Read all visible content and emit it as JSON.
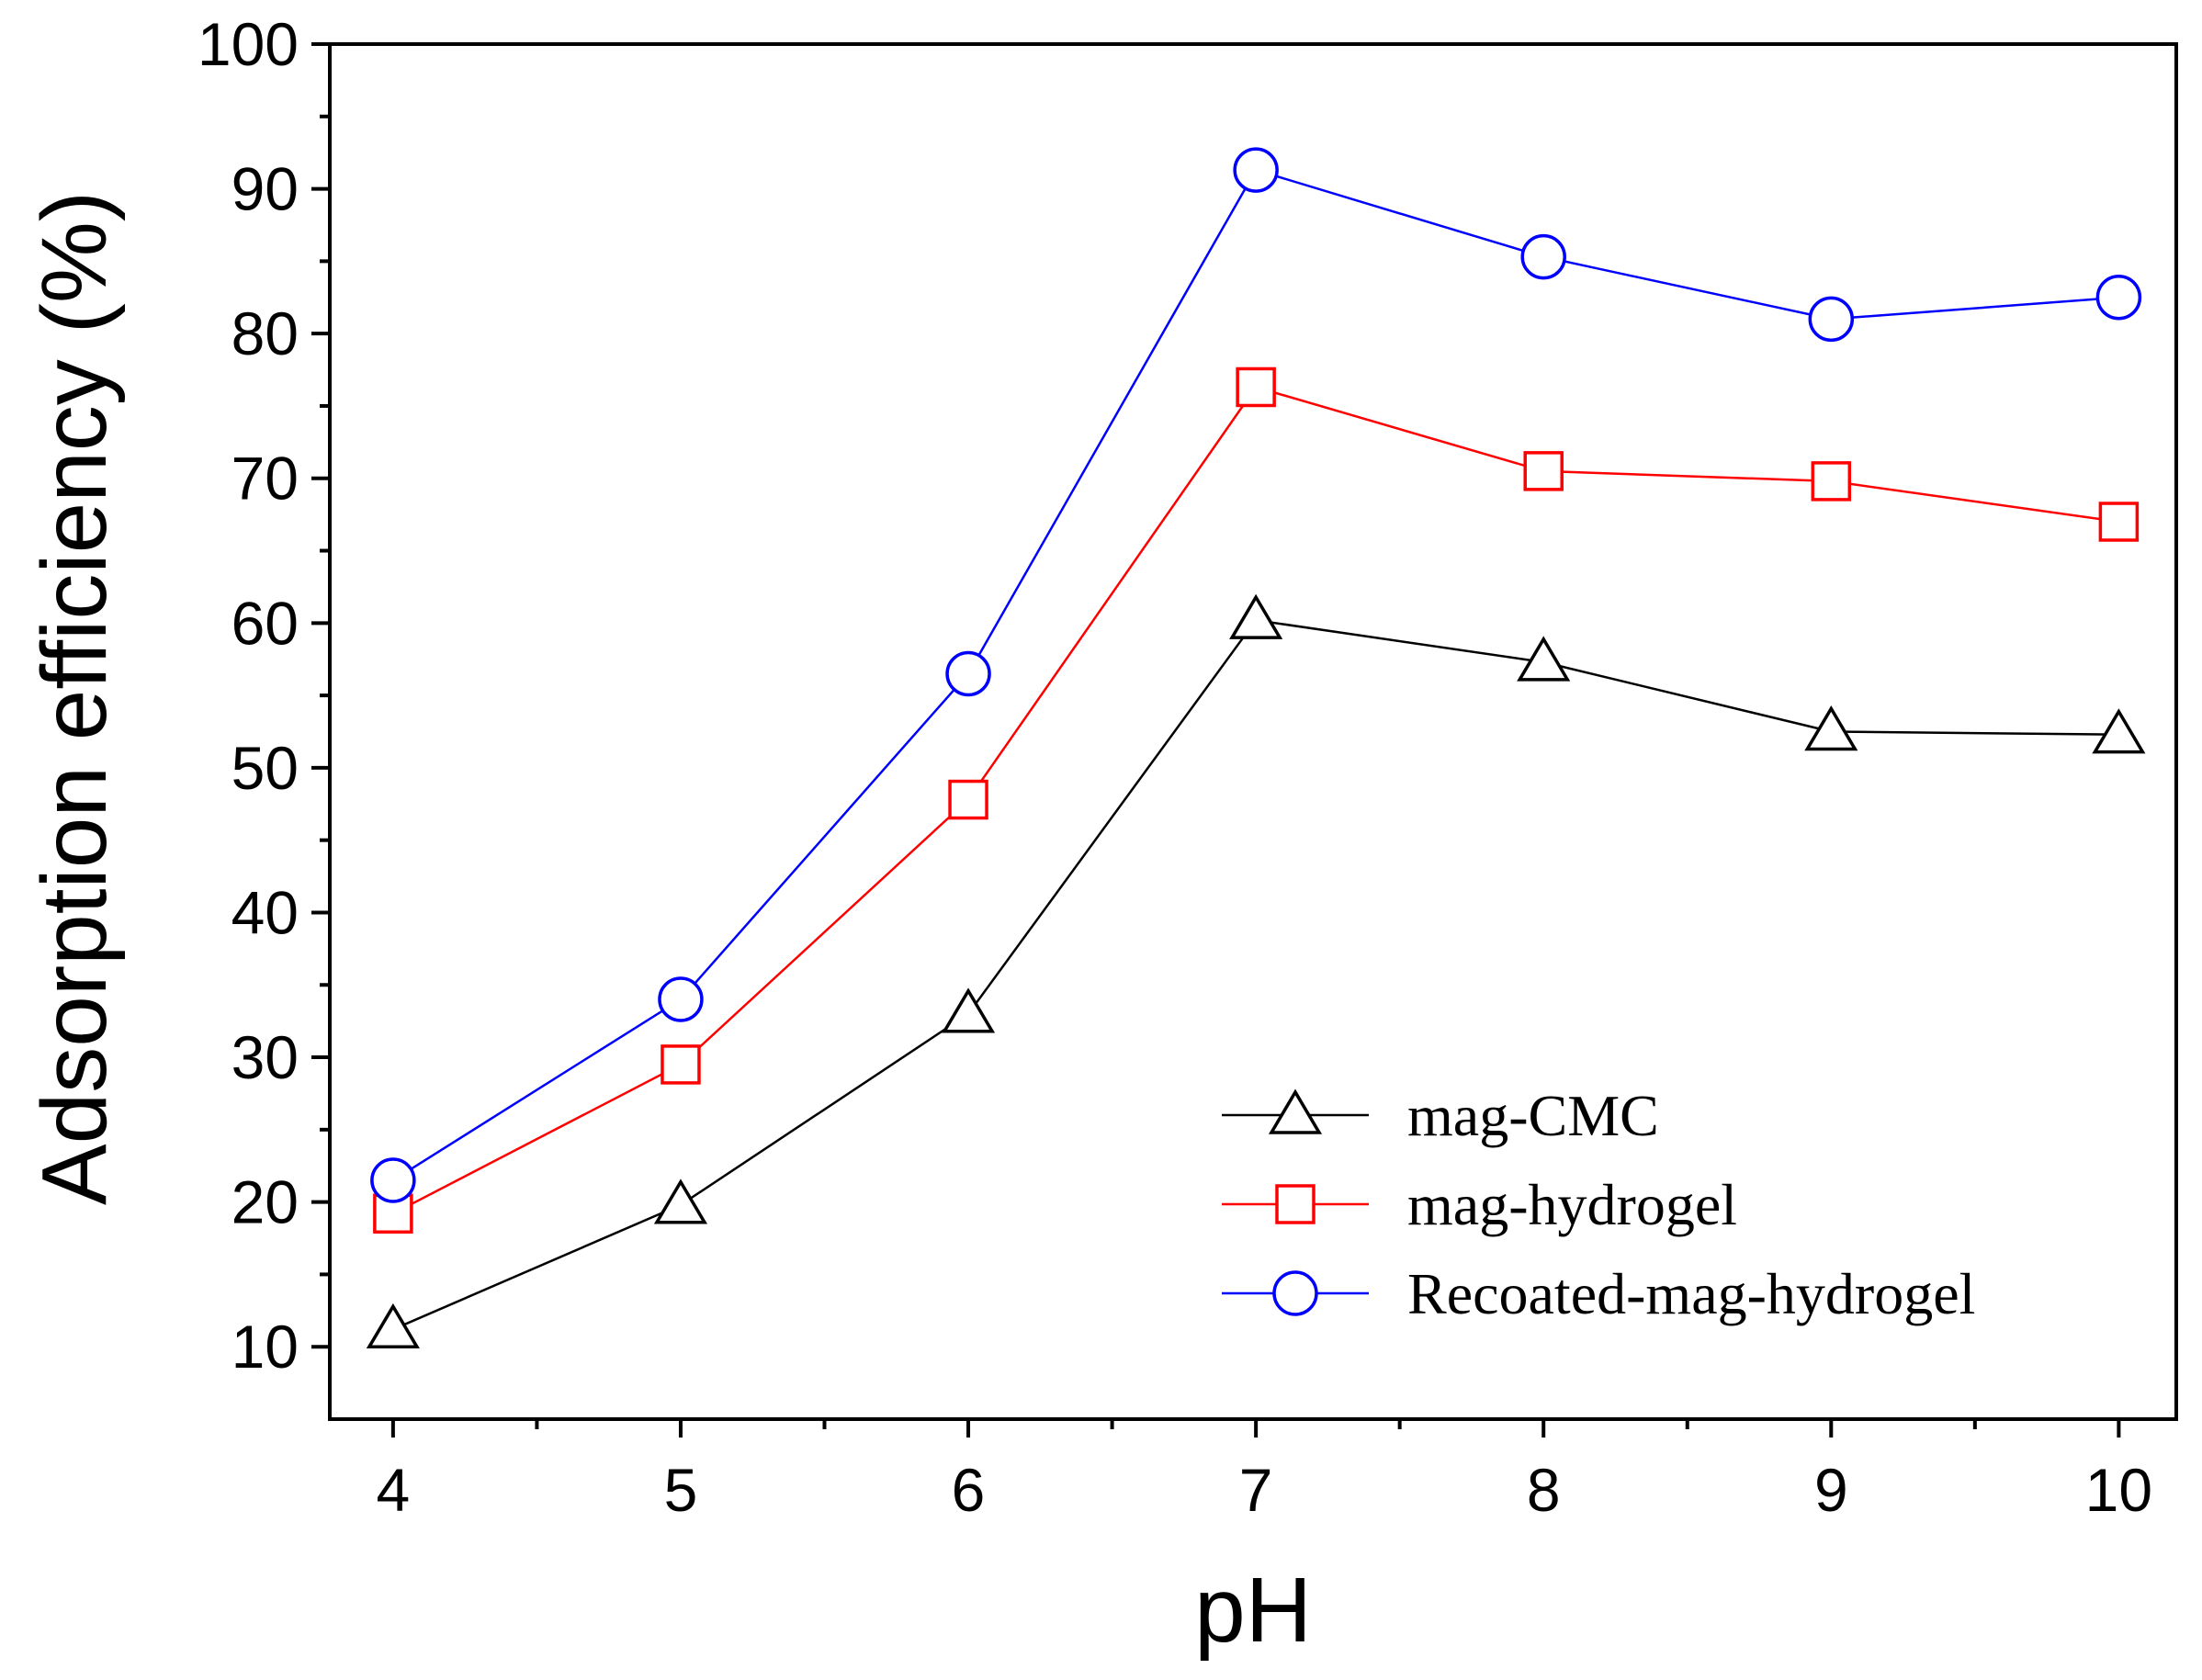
{
  "chart_data": {
    "type": "line",
    "title": "",
    "xlabel": "pH",
    "ylabel": "Adsorption  efficiency (%)",
    "x": [
      4,
      5,
      6,
      7,
      8,
      9,
      10
    ],
    "xlim": [
      3.78,
      10.2
    ],
    "ylim": [
      5,
      100
    ],
    "xticks": [
      4,
      5,
      6,
      7,
      8,
      9,
      10
    ],
    "yticks": [
      10,
      20,
      30,
      40,
      50,
      60,
      70,
      80,
      90,
      100
    ],
    "grid": false,
    "legend_position": "bottom-right",
    "series": [
      {
        "name": "mag-CMC",
        "marker": "triangle",
        "color": "#000000",
        "values": [
          11.2,
          19.8,
          33.0,
          60.2,
          57.3,
          52.5,
          52.3
        ]
      },
      {
        "name": "mag-hydrogel",
        "marker": "square",
        "color": "#ff0000",
        "values": [
          19.2,
          29.5,
          47.8,
          76.3,
          70.5,
          69.8,
          67.0
        ]
      },
      {
        "name": "Recoated-mag-hydrogel",
        "marker": "circle",
        "color": "#0000ff",
        "values": [
          21.5,
          34.0,
          56.5,
          91.3,
          85.3,
          81.0,
          82.5
        ]
      }
    ]
  }
}
